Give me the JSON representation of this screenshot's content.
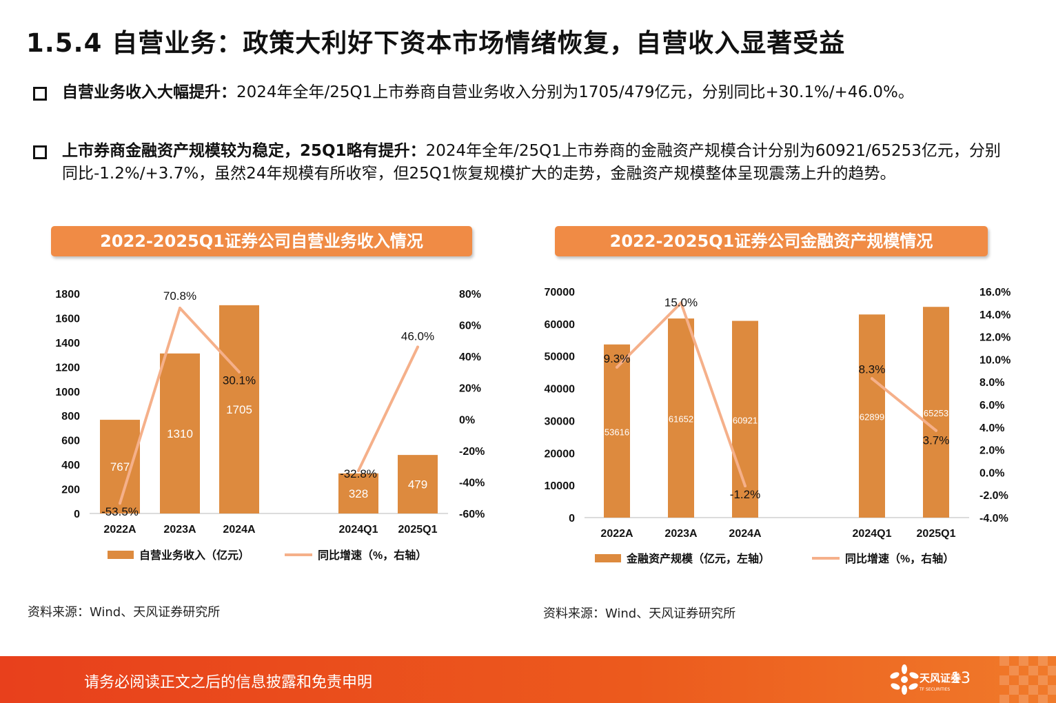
{
  "header": {
    "title": "1.5.4 自营业务：政策大利好下资本市场情绪恢复，自营收入显著受益"
  },
  "bullets": [
    {
      "bold": "自营业务收入大幅提升",
      "sep": "：",
      "text": "2024年全年/25Q1上市券商自营业务收入分别为1705/479亿元，分别同比+30.1%/+46.0%。"
    },
    {
      "bold": "上市券商金融资产规模较为稳定，25Q1略有提升",
      "sep": "：",
      "text": "2024年全年/25Q1上市券商的金融资产规模合计分别为60921/65253亿元，分别同比-1.2%/+3.7%，虽然24年规模有所收窄，但25Q1恢复规模扩大的走势，金融资产规模整体呈现震荡上升的趋势。"
    }
  ],
  "charts": {
    "left_title": "2022-2025Q1证券公司自营业务收入情况",
    "right_title": "2022-2025Q1证券公司金融资产规模情况",
    "left_source": "资料来源：Wind、天风证券研究所",
    "right_source": "资料来源：Wind、天风证券研究所"
  },
  "chart_data": [
    {
      "type": "bar",
      "categories": [
        "2022A",
        "2023A",
        "2024A",
        "2024Q1",
        "2025Q1"
      ],
      "series": [
        {
          "name": "自营业务收入（亿元）",
          "kind": "bar",
          "axis": "left",
          "values": [
            767,
            1310,
            1705,
            328,
            479
          ],
          "labels": [
            "767",
            "1310",
            "1705",
            "328",
            "479"
          ]
        },
        {
          "name": "同比增速（%，右轴）",
          "kind": "line",
          "axis": "right",
          "values": [
            -53.5,
            70.8,
            30.1,
            -32.8,
            46.0
          ],
          "labels": [
            "-53.5%",
            "70.8%",
            "30.1%",
            "-32.8%",
            "46.0%"
          ]
        }
      ],
      "ylim_left": [
        0,
        1800
      ],
      "yticks_left": [
        "0",
        "200",
        "400",
        "600",
        "800",
        "1000",
        "1200",
        "1400",
        "1600",
        "1800"
      ],
      "ylim_right": [
        -60,
        80
      ],
      "yticks_right": [
        "-60%",
        "-40%",
        "-20%",
        "0%",
        "20%",
        "40%",
        "60%",
        "80%"
      ],
      "line_segments": [
        [
          0,
          1,
          2
        ],
        [
          3,
          4
        ]
      ],
      "colors": {
        "bar": "#dd8a3e",
        "line": "#f5b08a"
      },
      "legend_placement": "bottom"
    },
    {
      "type": "bar",
      "categories": [
        "2022A",
        "2023A",
        "2024A",
        "2024Q1",
        "2025Q1"
      ],
      "series": [
        {
          "name": "金融资产规模（亿元，左轴）",
          "kind": "bar",
          "axis": "left",
          "values": [
            53616,
            61652,
            60921,
            62899,
            65253
          ],
          "labels": [
            "53616",
            "61652",
            "60921",
            "62899",
            "65253"
          ]
        },
        {
          "name": "同比增速（%，右轴）",
          "kind": "line",
          "axis": "right",
          "values": [
            9.3,
            15.0,
            -1.2,
            8.3,
            3.7
          ],
          "labels": [
            "9.3%",
            "15.0%",
            "-1.2%",
            "8.3%",
            "3.7%"
          ]
        }
      ],
      "ylim_left": [
        0,
        70000
      ],
      "yticks_left": [
        "0",
        "10000",
        "20000",
        "30000",
        "40000",
        "50000",
        "60000",
        "70000"
      ],
      "ylim_right": [
        -4,
        16
      ],
      "yticks_right": [
        "-4.0%",
        "-2.0%",
        "0.0%",
        "2.0%",
        "4.0%",
        "6.0%",
        "8.0%",
        "10.0%",
        "12.0%",
        "14.0%",
        "16.0%"
      ],
      "line_segments": [
        [
          0,
          1,
          2
        ],
        [
          3,
          4
        ]
      ],
      "colors": {
        "bar": "#dd8a3e",
        "line": "#f5b08a"
      },
      "legend_placement": "bottom"
    }
  ],
  "footer": {
    "notice": "请务必阅读正文之后的信息披露和免责申明",
    "page": "13",
    "logo_text": "天风证券",
    "logo_sub": "TF SECURITIES"
  }
}
